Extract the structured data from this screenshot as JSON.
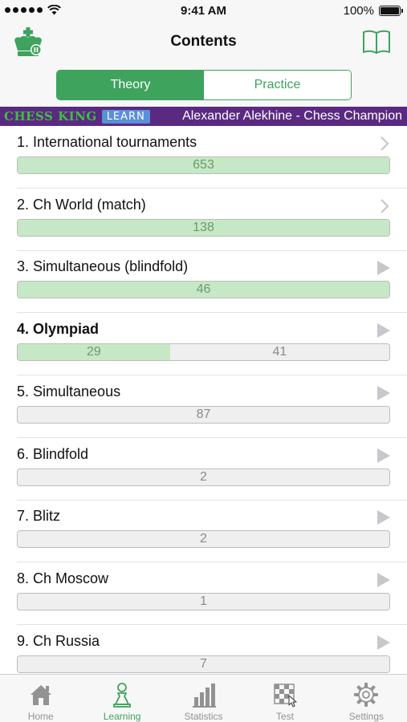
{
  "status_bar": {
    "time": "9:41 AM",
    "battery": "100%"
  },
  "header": {
    "title": "Contents"
  },
  "segments": {
    "theory": "Theory",
    "practice": "Practice"
  },
  "banner": {
    "brand": "CHESS KING",
    "learn": "LEARN",
    "title": "Alexander Alekhine - Chess Champion"
  },
  "items": [
    {
      "title": "1. International tournaments",
      "solved": "653",
      "remaining": "",
      "progress": 1.0,
      "indicator": "chevron",
      "bold": false
    },
    {
      "title": "2. Ch World (match)",
      "solved": "138",
      "remaining": "",
      "progress": 1.0,
      "indicator": "chevron",
      "bold": false
    },
    {
      "title": "3. Simultaneous (blindfold)",
      "solved": "46",
      "remaining": "",
      "progress": 1.0,
      "indicator": "play",
      "bold": false
    },
    {
      "title": "4. Olympiad",
      "solved": "29",
      "remaining": "41",
      "progress": 0.41,
      "indicator": "play",
      "bold": true
    },
    {
      "title": "5. Simultaneous",
      "solved": "",
      "remaining": "87",
      "progress": 0,
      "indicator": "play",
      "bold": false
    },
    {
      "title": "6. Blindfold",
      "solved": "",
      "remaining": "2",
      "progress": 0,
      "indicator": "play",
      "bold": false
    },
    {
      "title": "7. Blitz",
      "solved": "",
      "remaining": "2",
      "progress": 0,
      "indicator": "play",
      "bold": false
    },
    {
      "title": "8. Ch Moscow",
      "solved": "",
      "remaining": "1",
      "progress": 0,
      "indicator": "play",
      "bold": false
    },
    {
      "title": "9. Ch Russia",
      "solved": "",
      "remaining": "7",
      "progress": 0,
      "indicator": "play",
      "bold": false
    }
  ],
  "tabs": [
    {
      "label": "Home",
      "icon": "home-icon",
      "active": false
    },
    {
      "label": "Learning",
      "icon": "pawn-icon",
      "active": true
    },
    {
      "label": "Statistics",
      "icon": "bar-chart-icon",
      "active": false
    },
    {
      "label": "Test",
      "icon": "chessboard-icon",
      "active": false
    },
    {
      "label": "Settings",
      "icon": "gear-icon",
      "active": false
    }
  ],
  "colors": {
    "accent": "#3da35d",
    "banner": "#5a2a82",
    "progress_fill": "#c6e8c6"
  }
}
